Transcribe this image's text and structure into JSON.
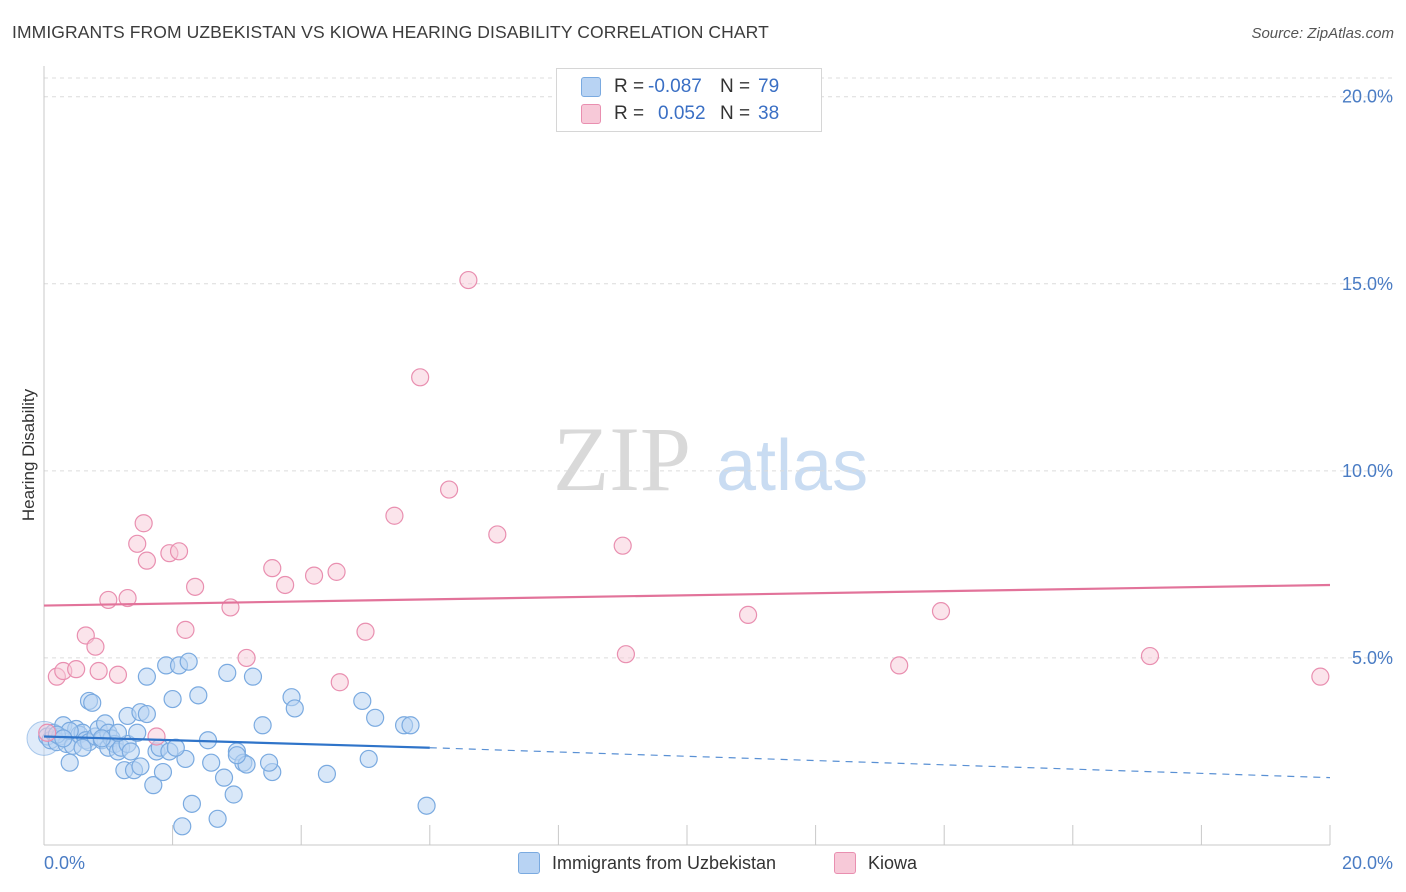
{
  "title": "IMMIGRANTS FROM UZBEKISTAN VS KIOWA HEARING DISABILITY CORRELATION CHART",
  "source": "Source: ZipAtlas.com",
  "watermark": {
    "zip": "ZIP",
    "atlas": "atlas"
  },
  "colors": {
    "blue": "#7aaae0",
    "blue_fill": "#b8d3f3",
    "blue_line": "#2f74c9",
    "pink": "#e98fb0",
    "pink_fill": "#f7c9d8",
    "pink_line": "#e2739a",
    "grid": "#dcdcdc",
    "tick_text": "#4a7cc4"
  },
  "legend": {
    "rows": [
      {
        "r_label": "R =",
        "r_value": "-0.087",
        "n_label": "N =",
        "n_value": "79"
      },
      {
        "r_label": "R =",
        "r_value": "0.052",
        "n_label": "N =",
        "n_value": "38"
      }
    ]
  },
  "bottom_legend": [
    "Immigrants from Uzbekistan",
    "Kiowa"
  ],
  "chart_data": {
    "type": "scatter",
    "title": "IMMIGRANTS FROM UZBEKISTAN VS KIOWA HEARING DISABILITY CORRELATION CHART",
    "xlabel": "",
    "ylabel": "Hearing Disability",
    "xlim": [
      0,
      20
    ],
    "ylim": [
      0,
      20.5
    ],
    "x_tick_labels": [
      "0.0%",
      "20.0%"
    ],
    "y_tick_labels": [
      "5.0%",
      "10.0%",
      "15.0%",
      "20.0%"
    ],
    "y_ticks": [
      5,
      10,
      15,
      20
    ],
    "grid": true,
    "legend_position": "top-center",
    "series": [
      {
        "name": "Immigrants from Uzbekistan",
        "R": -0.087,
        "N": 79,
        "trend": {
          "x": [
            0,
            6
          ],
          "y": [
            2.9,
            2.6
          ],
          "dashed_extension": {
            "x": [
              6,
              20
            ],
            "y": [
              2.6,
              1.8
            ]
          }
        },
        "points": [
          {
            "x": 0.05,
            "y": 2.9
          },
          {
            "x": 0.1,
            "y": 2.8
          },
          {
            "x": 0.15,
            "y": 3.0
          },
          {
            "x": 0.2,
            "y": 2.75
          },
          {
            "x": 0.25,
            "y": 2.9
          },
          {
            "x": 0.3,
            "y": 3.2
          },
          {
            "x": 0.35,
            "y": 2.7
          },
          {
            "x": 0.4,
            "y": 2.2
          },
          {
            "x": 0.45,
            "y": 2.65
          },
          {
            "x": 0.5,
            "y": 3.1
          },
          {
            "x": 0.55,
            "y": 2.95
          },
          {
            "x": 0.6,
            "y": 3.0
          },
          {
            "x": 0.65,
            "y": 2.8
          },
          {
            "x": 0.7,
            "y": 3.85
          },
          {
            "x": 0.7,
            "y": 2.75
          },
          {
            "x": 0.75,
            "y": 3.8
          },
          {
            "x": 0.8,
            "y": 2.9
          },
          {
            "x": 0.85,
            "y": 3.1
          },
          {
            "x": 0.9,
            "y": 2.8
          },
          {
            "x": 0.95,
            "y": 3.25
          },
          {
            "x": 1.0,
            "y": 2.6
          },
          {
            "x": 1.0,
            "y": 3.0
          },
          {
            "x": 1.05,
            "y": 2.85
          },
          {
            "x": 1.1,
            "y": 2.7
          },
          {
            "x": 1.15,
            "y": 2.5
          },
          {
            "x": 1.2,
            "y": 2.6
          },
          {
            "x": 1.25,
            "y": 2.0
          },
          {
            "x": 1.3,
            "y": 2.7
          },
          {
            "x": 1.3,
            "y": 3.45
          },
          {
            "x": 1.35,
            "y": 2.5
          },
          {
            "x": 1.4,
            "y": 2.0
          },
          {
            "x": 1.45,
            "y": 3.0
          },
          {
            "x": 1.5,
            "y": 3.55
          },
          {
            "x": 1.6,
            "y": 4.5
          },
          {
            "x": 1.6,
            "y": 3.5
          },
          {
            "x": 1.7,
            "y": 1.6
          },
          {
            "x": 1.75,
            "y": 2.5
          },
          {
            "x": 1.8,
            "y": 2.6
          },
          {
            "x": 1.85,
            "y": 1.95
          },
          {
            "x": 1.9,
            "y": 4.8
          },
          {
            "x": 1.95,
            "y": 2.5
          },
          {
            "x": 2.0,
            "y": 3.9
          },
          {
            "x": 2.1,
            "y": 4.8
          },
          {
            "x": 2.15,
            "y": 0.5
          },
          {
            "x": 2.2,
            "y": 2.3
          },
          {
            "x": 2.25,
            "y": 4.9
          },
          {
            "x": 2.3,
            "y": 1.1
          },
          {
            "x": 2.4,
            "y": 4.0
          },
          {
            "x": 2.55,
            "y": 2.8
          },
          {
            "x": 2.6,
            "y": 2.2
          },
          {
            "x": 2.7,
            "y": 0.7
          },
          {
            "x": 2.8,
            "y": 1.8
          },
          {
            "x": 2.85,
            "y": 4.6
          },
          {
            "x": 2.95,
            "y": 1.35
          },
          {
            "x": 3.0,
            "y": 2.5
          },
          {
            "x": 3.1,
            "y": 2.2
          },
          {
            "x": 3.15,
            "y": 2.15
          },
          {
            "x": 3.25,
            "y": 4.5
          },
          {
            "x": 3.4,
            "y": 3.2
          },
          {
            "x": 3.55,
            "y": 1.95
          },
          {
            "x": 3.85,
            "y": 3.95
          },
          {
            "x": 3.9,
            "y": 3.65
          },
          {
            "x": 3.5,
            "y": 2.2
          },
          {
            "x": 3.0,
            "y": 2.4
          },
          {
            "x": 4.4,
            "y": 1.9
          },
          {
            "x": 4.95,
            "y": 3.85
          },
          {
            "x": 5.05,
            "y": 2.3
          },
          {
            "x": 5.15,
            "y": 3.4
          },
          {
            "x": 5.6,
            "y": 3.2
          },
          {
            "x": 5.7,
            "y": 3.2
          },
          {
            "x": 5.95,
            "y": 1.05
          },
          {
            "x": 0.6,
            "y": 2.6
          },
          {
            "x": 0.9,
            "y": 2.85
          },
          {
            "x": 1.15,
            "y": 3.0
          },
          {
            "x": 0.4,
            "y": 3.05
          },
          {
            "x": 0.2,
            "y": 2.95
          },
          {
            "x": 1.5,
            "y": 2.1
          },
          {
            "x": 2.05,
            "y": 2.6
          },
          {
            "x": 0.3,
            "y": 2.85
          }
        ]
      },
      {
        "name": "Kiowa",
        "R": 0.052,
        "N": 38,
        "trend": {
          "x": [
            0,
            20
          ],
          "y": [
            6.4,
            6.95
          ]
        },
        "points": [
          {
            "x": 0.05,
            "y": 3.0
          },
          {
            "x": 0.2,
            "y": 4.5
          },
          {
            "x": 0.3,
            "y": 4.65
          },
          {
            "x": 0.5,
            "y": 4.7
          },
          {
            "x": 0.65,
            "y": 5.6
          },
          {
            "x": 0.8,
            "y": 5.3
          },
          {
            "x": 0.85,
            "y": 4.65
          },
          {
            "x": 1.0,
            "y": 6.55
          },
          {
            "x": 1.15,
            "y": 4.55
          },
          {
            "x": 1.3,
            "y": 6.6
          },
          {
            "x": 1.45,
            "y": 8.05
          },
          {
            "x": 1.55,
            "y": 8.6
          },
          {
            "x": 1.6,
            "y": 7.6
          },
          {
            "x": 1.75,
            "y": 2.9
          },
          {
            "x": 1.95,
            "y": 7.8
          },
          {
            "x": 2.1,
            "y": 7.85
          },
          {
            "x": 2.2,
            "y": 5.75
          },
          {
            "x": 2.35,
            "y": 6.9
          },
          {
            "x": 2.9,
            "y": 6.35
          },
          {
            "x": 3.15,
            "y": 5.0
          },
          {
            "x": 3.55,
            "y": 7.4
          },
          {
            "x": 3.75,
            "y": 6.95
          },
          {
            "x": 4.2,
            "y": 7.2
          },
          {
            "x": 4.55,
            "y": 7.3
          },
          {
            "x": 4.6,
            "y": 4.35
          },
          {
            "x": 5.0,
            "y": 5.7
          },
          {
            "x": 5.45,
            "y": 8.8
          },
          {
            "x": 5.85,
            "y": 12.5
          },
          {
            "x": 6.3,
            "y": 9.5
          },
          {
            "x": 6.6,
            "y": 15.1
          },
          {
            "x": 7.05,
            "y": 8.3
          },
          {
            "x": 9.0,
            "y": 8.0
          },
          {
            "x": 9.05,
            "y": 5.1
          },
          {
            "x": 10.95,
            "y": 6.15
          },
          {
            "x": 13.3,
            "y": 4.8
          },
          {
            "x": 13.95,
            "y": 6.25
          },
          {
            "x": 17.2,
            "y": 5.05
          },
          {
            "x": 19.85,
            "y": 4.5
          }
        ]
      }
    ]
  }
}
